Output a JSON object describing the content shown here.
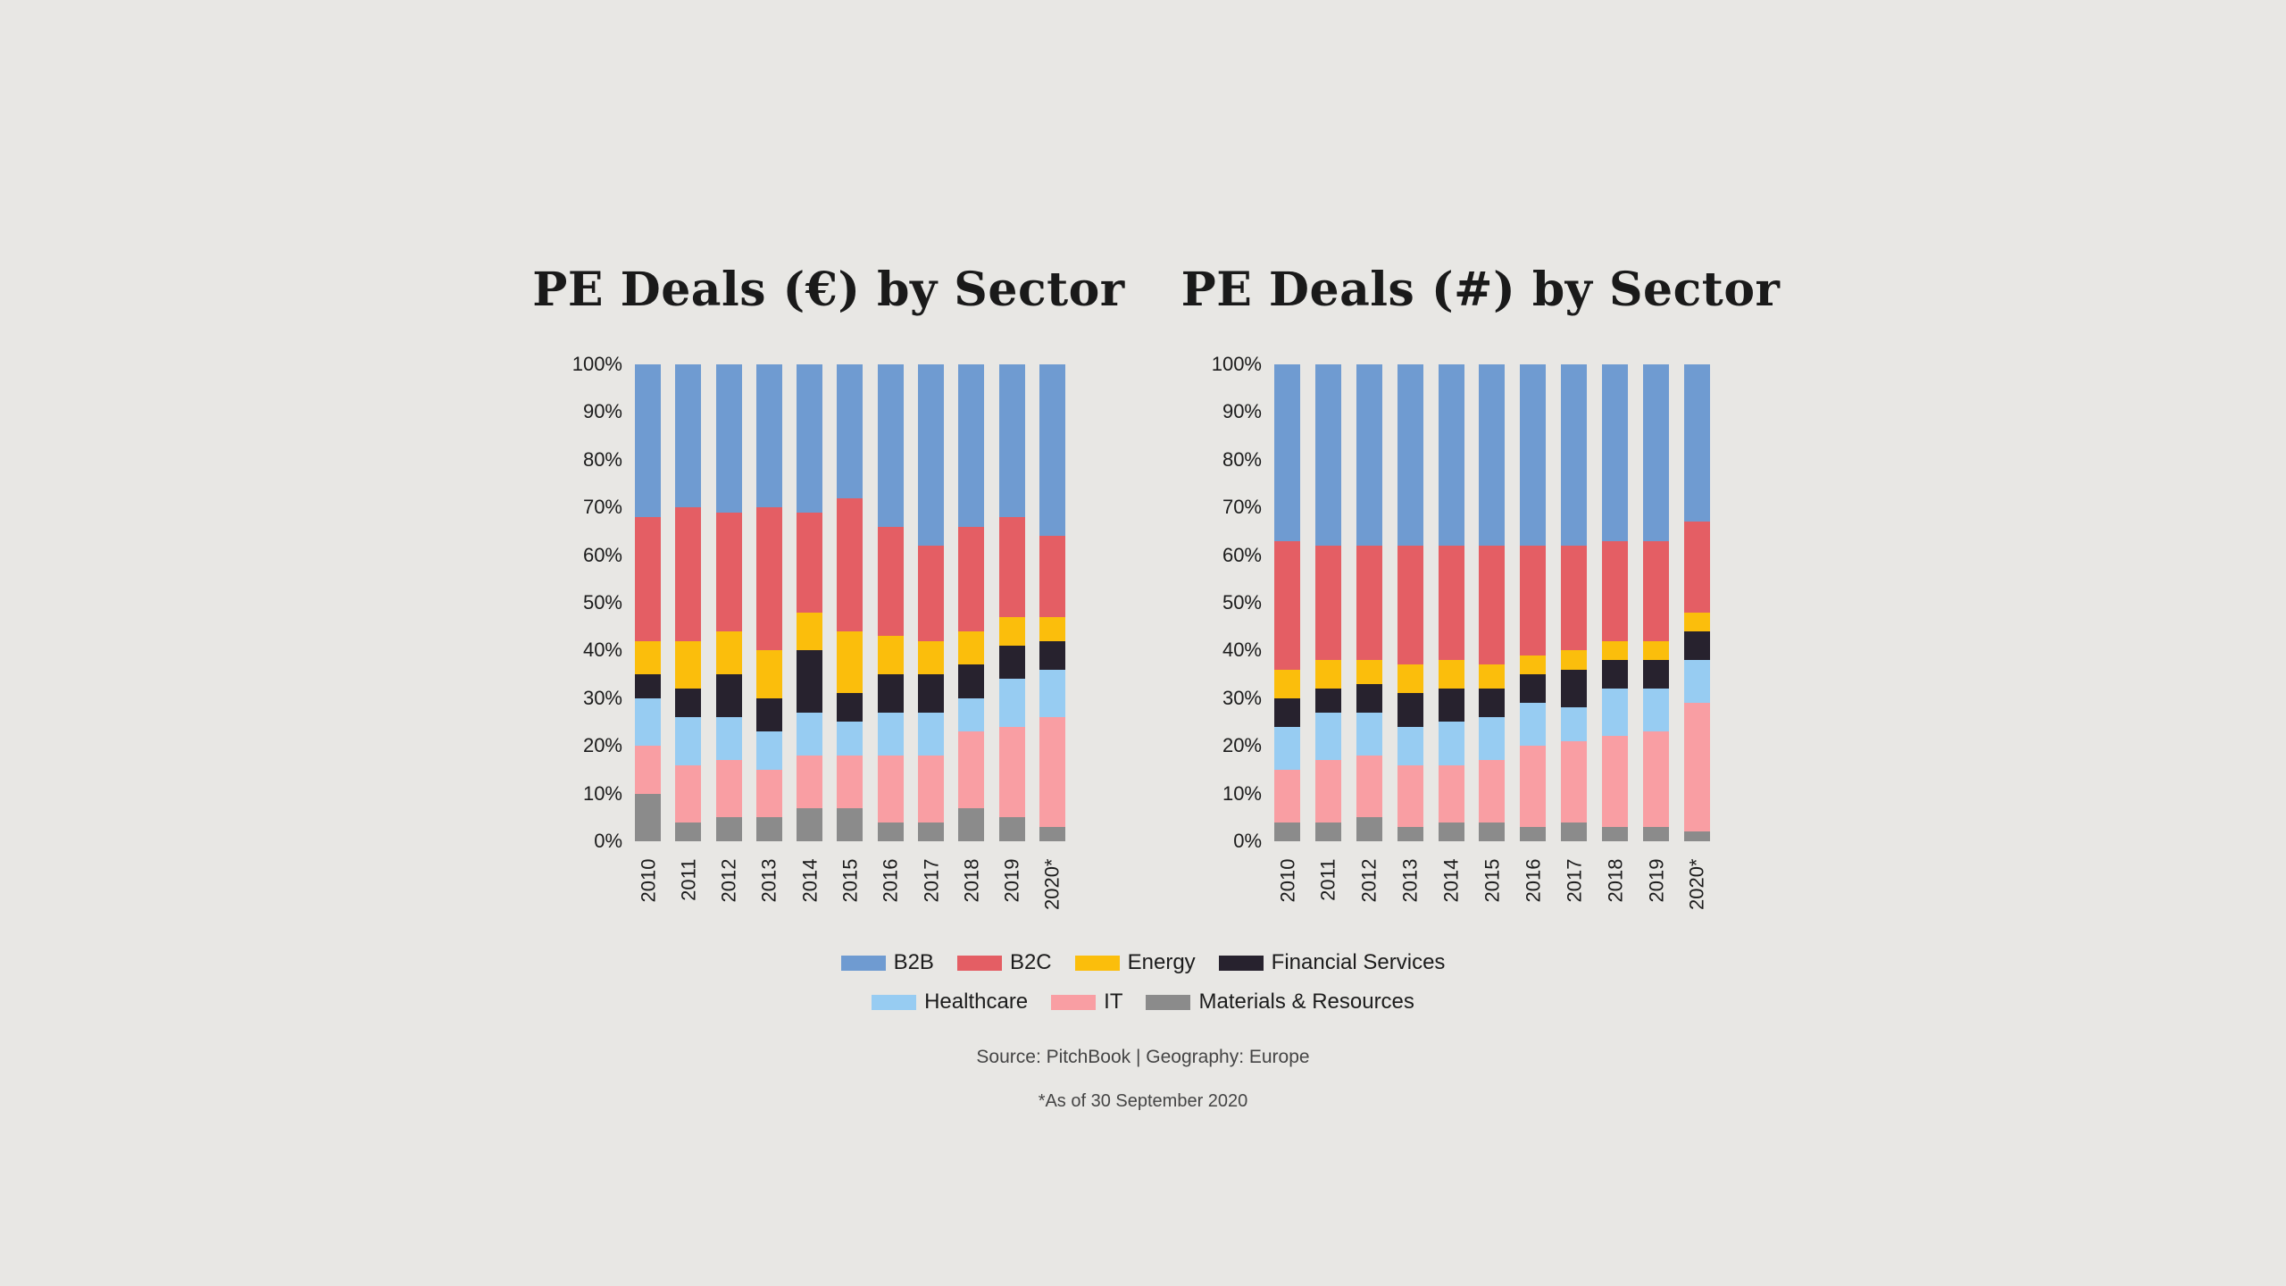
{
  "page": {
    "background": "#E8E7E4"
  },
  "legend": {
    "rows": [
      [
        {
          "label": "B2B",
          "color": "#6F9BD1"
        },
        {
          "label": "B2C",
          "color": "#E45E64"
        },
        {
          "label": "Energy",
          "color": "#FBBE0C"
        },
        {
          "label": "Financial Services",
          "color": "#27222E"
        }
      ],
      [
        {
          "label": "Healthcare",
          "color": "#97CCF2"
        },
        {
          "label": "IT",
          "color": "#F99EA3"
        },
        {
          "label": "Materials & Resources",
          "color": "#8B8B8B"
        }
      ]
    ]
  },
  "footer": {
    "source": "Source: PitchBook | Geography: Europe",
    "note": "*As of 30 September 2020"
  },
  "chart_data": [
    {
      "type": "bar",
      "variant": "stacked-100-percent",
      "title": "PE Deals (€) by Sector",
      "categories": [
        "2010",
        "2011",
        "2012",
        "2013",
        "2014",
        "2015",
        "2016",
        "2017",
        "2018",
        "2019",
        "2020*"
      ],
      "stack_order": "bottom-to-top",
      "series": [
        {
          "name": "Materials & Resources",
          "color": "#8B8B8B",
          "values": [
            10,
            4,
            5,
            5,
            7,
            7,
            4,
            4,
            7,
            5,
            3
          ]
        },
        {
          "name": "IT",
          "color": "#F99EA3",
          "values": [
            10,
            12,
            12,
            10,
            11,
            11,
            14,
            14,
            16,
            19,
            23
          ]
        },
        {
          "name": "Healthcare",
          "color": "#97CCF2",
          "values": [
            10,
            10,
            9,
            8,
            9,
            7,
            9,
            9,
            7,
            10,
            10
          ]
        },
        {
          "name": "Financial Services",
          "color": "#27222E",
          "values": [
            5,
            6,
            9,
            7,
            13,
            6,
            8,
            8,
            7,
            7,
            6
          ]
        },
        {
          "name": "Energy",
          "color": "#FBBE0C",
          "values": [
            7,
            10,
            9,
            10,
            8,
            13,
            8,
            7,
            7,
            6,
            5
          ]
        },
        {
          "name": "B2C",
          "color": "#E45E64",
          "values": [
            26,
            28,
            25,
            30,
            21,
            28,
            23,
            20,
            22,
            21,
            17
          ]
        },
        {
          "name": "B2B",
          "color": "#6F9BD1",
          "values": [
            32,
            30,
            31,
            30,
            31,
            28,
            34,
            38,
            34,
            32,
            36
          ]
        }
      ],
      "xlabel": "",
      "ylabel": "",
      "ylim": [
        0,
        100
      ],
      "y_ticks": [
        "100%",
        "90%",
        "80%",
        "70%",
        "60%",
        "50%",
        "40%",
        "30%",
        "20%",
        "10%",
        "0%"
      ],
      "x_tick_rotation": 90,
      "grid": false,
      "legend_position": "below-shared"
    },
    {
      "type": "bar",
      "variant": "stacked-100-percent",
      "title": "PE Deals (#) by Sector",
      "categories": [
        "2010",
        "2011",
        "2012",
        "2013",
        "2014",
        "2015",
        "2016",
        "2017",
        "2018",
        "2019",
        "2020*"
      ],
      "stack_order": "bottom-to-top",
      "series": [
        {
          "name": "Materials & Resources",
          "color": "#8B8B8B",
          "values": [
            4,
            4,
            5,
            3,
            4,
            4,
            3,
            4,
            3,
            3,
            2
          ]
        },
        {
          "name": "IT",
          "color": "#F99EA3",
          "values": [
            11,
            13,
            13,
            13,
            12,
            13,
            17,
            17,
            19,
            20,
            27
          ]
        },
        {
          "name": "Healthcare",
          "color": "#97CCF2",
          "values": [
            9,
            10,
            9,
            8,
            9,
            9,
            9,
            7,
            10,
            9,
            9
          ]
        },
        {
          "name": "Financial Services",
          "color": "#27222E",
          "values": [
            6,
            5,
            6,
            7,
            7,
            6,
            6,
            8,
            6,
            6,
            6
          ]
        },
        {
          "name": "Energy",
          "color": "#FBBE0C",
          "values": [
            6,
            6,
            5,
            6,
            6,
            5,
            4,
            4,
            4,
            4,
            4
          ]
        },
        {
          "name": "B2C",
          "color": "#E45E64",
          "values": [
            27,
            24,
            24,
            25,
            24,
            25,
            23,
            22,
            21,
            21,
            19
          ]
        },
        {
          "name": "B2B",
          "color": "#6F9BD1",
          "values": [
            37,
            38,
            38,
            38,
            38,
            38,
            38,
            38,
            37,
            37,
            33
          ]
        }
      ],
      "xlabel": "",
      "ylabel": "",
      "ylim": [
        0,
        100
      ],
      "y_ticks": [
        "100%",
        "90%",
        "80%",
        "70%",
        "60%",
        "50%",
        "40%",
        "30%",
        "20%",
        "10%",
        "0%"
      ],
      "x_tick_rotation": 90,
      "grid": false,
      "legend_position": "below-shared"
    }
  ]
}
